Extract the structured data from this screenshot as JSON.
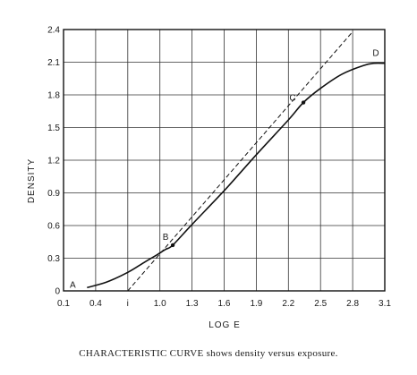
{
  "chart_data": {
    "type": "line",
    "xlabel": "LOG E",
    "ylabel": "DENSITY",
    "x_ticks": [
      "0.1",
      "0.4",
      "i",
      "1.0",
      "1.3",
      "1.6",
      "1.9",
      "2.2",
      "2.5",
      "2.8",
      "3.1"
    ],
    "x_tick_values": [
      0.1,
      0.4,
      0.7,
      1.0,
      1.3,
      1.6,
      1.9,
      2.2,
      2.5,
      2.8,
      3.1
    ],
    "y_ticks": [
      "0",
      "0.3",
      "0.6",
      "0.9",
      "1.2",
      "1.5",
      "1.8",
      "2.1",
      "2.4"
    ],
    "y_tick_values": [
      0,
      0.3,
      0.6,
      0.9,
      1.2,
      1.5,
      1.8,
      2.1,
      2.4
    ],
    "xlim": [
      0.1,
      3.1
    ],
    "ylim": [
      0,
      2.4
    ],
    "grid": true,
    "series": [
      {
        "style": "solid",
        "x": [
          0.32,
          0.5,
          0.7,
          0.85,
          0.97,
          1.05,
          1.12,
          1.3,
          1.6,
          1.9,
          2.2,
          2.34,
          2.5,
          2.7,
          2.9,
          3.0,
          3.1
        ],
        "y": [
          0.03,
          0.08,
          0.17,
          0.26,
          0.33,
          0.38,
          0.42,
          0.61,
          0.92,
          1.25,
          1.57,
          1.73,
          1.86,
          1.99,
          2.07,
          2.09,
          2.09
        ]
      },
      {
        "style": "dashed",
        "x": [
          0.7,
          2.8
        ],
        "y": [
          0.0,
          2.38
        ]
      }
    ],
    "points": [
      {
        "label": "A",
        "x": 0.32,
        "y": 0.03
      },
      {
        "label": "B",
        "x": 1.12,
        "y": 0.42
      },
      {
        "label": "C",
        "x": 2.34,
        "y": 1.73
      },
      {
        "label": "D",
        "x": 3.1,
        "y": 2.09
      }
    ]
  },
  "caption": "CHARACTERISTIC CURVE shows density versus exposure."
}
